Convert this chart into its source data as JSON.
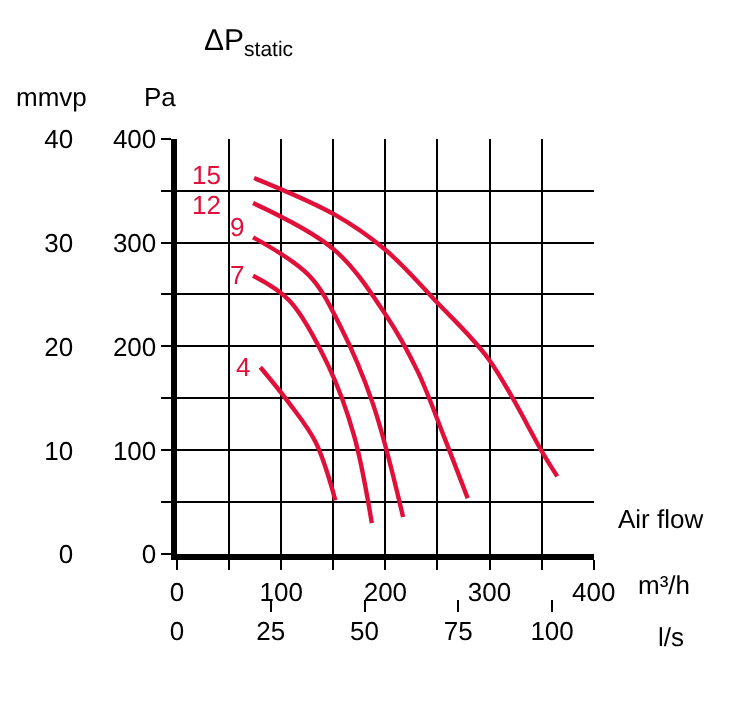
{
  "chart_data": {
    "type": "line",
    "title": "ΔP$_{static}$",
    "xlabel": "m³/h",
    "ylabel": "Pa",
    "y2label": "mmvp",
    "x2label": "l/s",
    "annotations": [
      "Air flow"
    ],
    "xlim": [
      0,
      400
    ],
    "xticks": [
      0,
      {
        "value": 50,
        "label": null
      },
      100,
      {
        "value": 150,
        "label": null
      },
      200,
      {
        "value": 250,
        "label": null
      },
      300,
      {
        "value": 350,
        "label": null
      },
      400
    ],
    "ylim": [
      0,
      400
    ],
    "yticks": [
      0,
      {
        "value": 50,
        "label": null
      },
      100,
      {
        "value": 150,
        "label": null
      },
      200,
      {
        "value": 250,
        "label": null
      },
      300,
      {
        "value": 350,
        "label": null
      },
      400
    ],
    "y2lim": [
      0,
      40
    ],
    "y2ticks": [
      0,
      10,
      20,
      30,
      40
    ],
    "x2lim": [
      0,
      111.1
    ],
    "x2ticks": [
      0,
      25,
      50,
      75,
      100
    ],
    "grid": true,
    "legend": false,
    "marker": "none",
    "line_style": "solid",
    "series": [
      {
        "name": "15",
        "color": "#e0103a",
        "x": [
          74,
          151,
          200,
          249,
          299,
          352,
          365
        ],
        "values": [
          362,
          327,
          293,
          243,
          188,
          96,
          75
        ]
      },
      {
        "name": "12",
        "color": "#e0103a",
        "x": [
          73,
          151,
          200,
          231,
          256,
          279
        ],
        "values": [
          338,
          293,
          231,
          176,
          114,
          54
        ]
      },
      {
        "name": "9",
        "color": "#e0103a",
        "x": [
          73,
          127,
          157,
          188,
          217
        ],
        "values": [
          305,
          268,
          219,
          145,
          36
        ]
      },
      {
        "name": "7",
        "color": "#e0103a",
        "x": [
          73,
          108,
          145,
          170,
          187
        ],
        "values": [
          268,
          244,
          182,
          114,
          30
        ]
      },
      {
        "name": "4",
        "color": "#e0103a",
        "x": [
          80,
          108,
          133,
          152
        ],
        "values": [
          180,
          145,
          108,
          52
        ]
      }
    ]
  }
}
